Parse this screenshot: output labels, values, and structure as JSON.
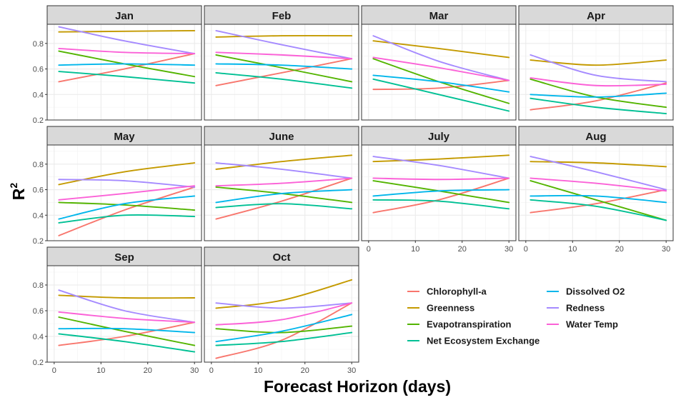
{
  "chart_data": {
    "type": "line",
    "xlabel": "Forecast Horizon (days)",
    "ylabel": {
      "base": "R",
      "superscript": "2"
    },
    "xlim": [
      0,
      30
    ],
    "ylim": [
      0.2,
      0.95
    ],
    "xticks": [
      0,
      10,
      20,
      30
    ],
    "yticks": [
      0.2,
      0.4,
      0.6,
      0.8
    ],
    "x_points": [
      1,
      15,
      30
    ],
    "grid": true,
    "legend_position": "bottom-right",
    "series_names": [
      "Chlorophyll-a",
      "Greenness",
      "Evapotranspiration",
      "Net Ecosystem Exchange",
      "Dissolved O2",
      "Redness",
      "Water Temp"
    ],
    "colors": {
      "Chlorophyll-a": "#F8766D",
      "Greenness": "#C49A00",
      "Evapotranspiration": "#53B400",
      "Net Ecosystem Exchange": "#00C094",
      "Dissolved O2": "#00B6EB",
      "Redness": "#A58AFF",
      "Water Temp": "#FB61D7"
    },
    "legend": [
      [
        "Chlorophyll-a",
        "Greenness",
        "Evapotranspiration",
        "Net Ecosystem Exchange"
      ],
      [
        "Dissolved O2",
        "Redness",
        "Water Temp"
      ]
    ],
    "panels": [
      {
        "month": "Jan",
        "series": {
          "Chlorophyll-a": [
            0.5,
            0.6,
            0.72
          ],
          "Greenness": [
            0.89,
            0.895,
            0.9
          ],
          "Evapotranspiration": [
            0.74,
            0.64,
            0.54
          ],
          "Net Ecosystem Exchange": [
            0.58,
            0.54,
            0.49
          ],
          "Dissolved O2": [
            0.63,
            0.64,
            0.63
          ],
          "Redness": [
            0.93,
            0.82,
            0.72
          ],
          "Water Temp": [
            0.76,
            0.73,
            0.72
          ]
        }
      },
      {
        "month": "Feb",
        "series": {
          "Chlorophyll-a": [
            0.47,
            0.57,
            0.68
          ],
          "Greenness": [
            0.85,
            0.86,
            0.86
          ],
          "Evapotranspiration": [
            0.71,
            0.61,
            0.5
          ],
          "Net Ecosystem Exchange": [
            0.57,
            0.52,
            0.45
          ],
          "Dissolved O2": [
            0.64,
            0.63,
            0.6
          ],
          "Redness": [
            0.9,
            0.79,
            0.68
          ],
          "Water Temp": [
            0.73,
            0.71,
            0.68
          ]
        }
      },
      {
        "month": "Mar",
        "series": {
          "Chlorophyll-a": [
            0.44,
            0.45,
            0.51
          ],
          "Greenness": [
            0.82,
            0.76,
            0.69
          ],
          "Evapotranspiration": [
            0.68,
            0.5,
            0.33
          ],
          "Net Ecosystem Exchange": [
            0.52,
            0.4,
            0.27
          ],
          "Dissolved O2": [
            0.55,
            0.5,
            0.42
          ],
          "Redness": [
            0.86,
            0.66,
            0.51
          ],
          "Water Temp": [
            0.69,
            0.61,
            0.51
          ]
        }
      },
      {
        "month": "Apr",
        "series": {
          "Chlorophyll-a": [
            0.28,
            0.35,
            0.49
          ],
          "Greenness": [
            0.67,
            0.63,
            0.67
          ],
          "Evapotranspiration": [
            0.52,
            0.38,
            0.3
          ],
          "Net Ecosystem Exchange": [
            0.37,
            0.3,
            0.25
          ],
          "Dissolved O2": [
            0.4,
            0.38,
            0.41
          ],
          "Redness": [
            0.71,
            0.55,
            0.5
          ],
          "Water Temp": [
            0.53,
            0.47,
            0.48
          ]
        }
      },
      {
        "month": "May",
        "series": {
          "Chlorophyll-a": [
            0.24,
            0.44,
            0.62
          ],
          "Greenness": [
            0.64,
            0.74,
            0.81
          ],
          "Evapotranspiration": [
            0.5,
            0.48,
            0.44
          ],
          "Net Ecosystem Exchange": [
            0.34,
            0.4,
            0.39
          ],
          "Dissolved O2": [
            0.37,
            0.49,
            0.55
          ],
          "Redness": [
            0.68,
            0.67,
            0.62
          ],
          "Water Temp": [
            0.52,
            0.57,
            0.63
          ]
        }
      },
      {
        "month": "June",
        "series": {
          "Chlorophyll-a": [
            0.37,
            0.51,
            0.69
          ],
          "Greenness": [
            0.76,
            0.82,
            0.87
          ],
          "Evapotranspiration": [
            0.62,
            0.57,
            0.5
          ],
          "Net Ecosystem Exchange": [
            0.46,
            0.49,
            0.45
          ],
          "Dissolved O2": [
            0.5,
            0.57,
            0.6
          ],
          "Redness": [
            0.81,
            0.76,
            0.69
          ],
          "Water Temp": [
            0.63,
            0.65,
            0.69
          ]
        }
      },
      {
        "month": "July",
        "series": {
          "Chlorophyll-a": [
            0.42,
            0.52,
            0.69
          ],
          "Greenness": [
            0.82,
            0.84,
            0.87
          ],
          "Evapotranspiration": [
            0.67,
            0.59,
            0.5
          ],
          "Net Ecosystem Exchange": [
            0.52,
            0.51,
            0.45
          ],
          "Dissolved O2": [
            0.55,
            0.59,
            0.6
          ],
          "Redness": [
            0.86,
            0.79,
            0.69
          ],
          "Water Temp": [
            0.69,
            0.68,
            0.69
          ]
        }
      },
      {
        "month": "Aug",
        "series": {
          "Chlorophyll-a": [
            0.42,
            0.49,
            0.6
          ],
          "Greenness": [
            0.82,
            0.81,
            0.78
          ],
          "Evapotranspiration": [
            0.67,
            0.52,
            0.36
          ],
          "Net Ecosystem Exchange": [
            0.52,
            0.47,
            0.36
          ],
          "Dissolved O2": [
            0.55,
            0.55,
            0.5
          ],
          "Redness": [
            0.86,
            0.74,
            0.6
          ],
          "Water Temp": [
            0.69,
            0.65,
            0.59
          ]
        }
      },
      {
        "month": "Sep",
        "series": {
          "Chlorophyll-a": [
            0.33,
            0.4,
            0.51
          ],
          "Greenness": [
            0.72,
            0.7,
            0.7
          ],
          "Evapotranspiration": [
            0.55,
            0.44,
            0.33
          ],
          "Net Ecosystem Exchange": [
            0.42,
            0.36,
            0.28
          ],
          "Dissolved O2": [
            0.46,
            0.46,
            0.43
          ],
          "Redness": [
            0.76,
            0.6,
            0.51
          ],
          "Water Temp": [
            0.59,
            0.54,
            0.51
          ]
        }
      },
      {
        "month": "Oct",
        "series": {
          "Chlorophyll-a": [
            0.23,
            0.37,
            0.66
          ],
          "Greenness": [
            0.62,
            0.68,
            0.84
          ],
          "Evapotranspiration": [
            0.46,
            0.43,
            0.48
          ],
          "Net Ecosystem Exchange": [
            0.33,
            0.36,
            0.43
          ],
          "Dissolved O2": [
            0.36,
            0.44,
            0.57
          ],
          "Redness": [
            0.66,
            0.62,
            0.66
          ],
          "Water Temp": [
            0.49,
            0.53,
            0.66
          ]
        }
      }
    ]
  }
}
